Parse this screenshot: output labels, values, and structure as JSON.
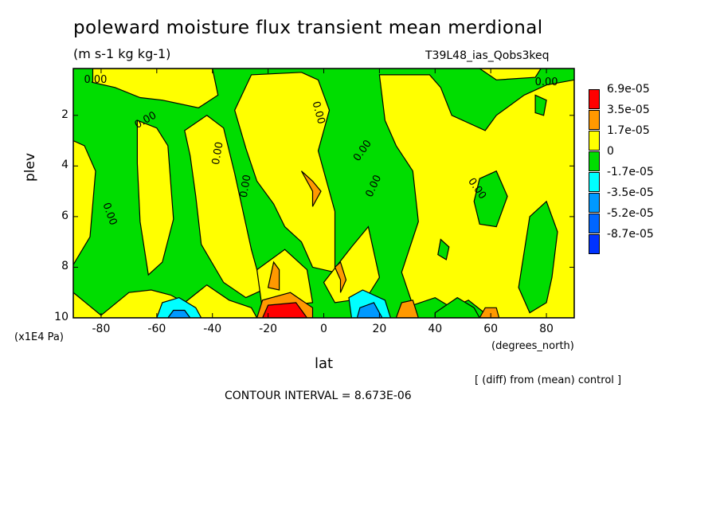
{
  "chart_data": {
    "type": "heatmap",
    "title": "poleward moisture flux transient mean merdional",
    "units": "(m s-1 kg kg-1)",
    "run_label": "T39L48_ias_Qobs3keq",
    "xlabel": "lat",
    "x_units": "(degrees_north)",
    "ylabel": "plev",
    "y_units": "(x1E4 Pa)",
    "xlim": [
      -90,
      90
    ],
    "ylim": [
      10,
      0.15
    ],
    "x_ticks": [
      "-80",
      "-60",
      "-40",
      "-20",
      "0",
      "20",
      "40",
      "60",
      "80"
    ],
    "y_ticks": [
      "2",
      "4",
      "6",
      "8",
      "10"
    ],
    "contour_labels": [
      "0.00",
      "0.00",
      "0.00",
      "0.00",
      "0.00",
      "0.00",
      "0.00",
      "0.00",
      "0.00",
      "0.00"
    ],
    "legend": [
      {
        "label": "6.9e-05",
        "color": "#ff0000"
      },
      {
        "label": "3.5e-05",
        "color": "#ff9900"
      },
      {
        "label": "1.7e-05",
        "color": "#ffff00"
      },
      {
        "label": "0",
        "color": "#00dd00"
      },
      {
        "label": "-1.7e-05",
        "color": "#00ffff"
      },
      {
        "label": "-3.5e-05",
        "color": "#0099ff"
      },
      {
        "label": "-5.2e-05",
        "color": "#0066ff"
      },
      {
        "label": "-8.7e-05",
        "color": "#0033ff"
      }
    ],
    "note": "[ (diff) from (mean) control ]",
    "contour_interval": "CONTOUR INTERVAL = 8.673E-06",
    "features": [
      {
        "lat": -15,
        "plev": 9.9,
        "value": 6.9e-05
      },
      {
        "lat": 30,
        "plev": 9.9,
        "value": 3.5e-05
      },
      {
        "lat": -5,
        "plev": 5.0,
        "value": 3.5e-05
      },
      {
        "lat": 5,
        "plev": 8.5,
        "value": 3.5e-05
      },
      {
        "lat": 15,
        "plev": 9.7,
        "value": -3.5e-05
      },
      {
        "lat": -55,
        "plev": 9.9,
        "value": -3.5e-05
      }
    ]
  }
}
